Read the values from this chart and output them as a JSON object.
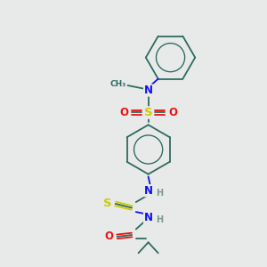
{
  "bg_color": "#e8eaea",
  "bond_color": "#2d6b5e",
  "atom_colors": {
    "N": "#1010ee",
    "O": "#ee1010",
    "S": "#cccc00",
    "H": "#7a9a8a",
    "C": "#2d6b5e"
  },
  "figsize": [
    3.0,
    3.0
  ],
  "dpi": 100
}
